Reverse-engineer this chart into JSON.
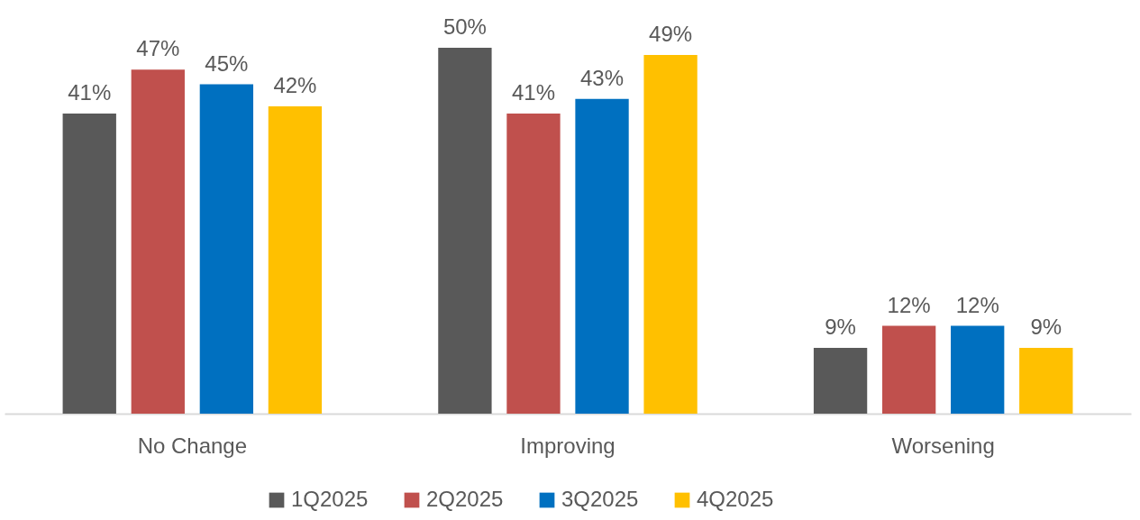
{
  "chart_data": {
    "type": "bar",
    "categories": [
      "No Change",
      "Improving",
      "Worsening"
    ],
    "legend": "bottom",
    "series": [
      {
        "name": "1Q2025",
        "color": "#595959",
        "values": [
          41,
          50,
          9
        ],
        "value_labels": [
          "41%",
          "50%",
          "9%"
        ]
      },
      {
        "name": "2Q2025",
        "color": "#c0504d",
        "values": [
          47,
          41,
          12
        ],
        "value_labels": [
          "47%",
          "41%",
          "12%"
        ]
      },
      {
        "name": "3Q2025",
        "color": "#0070c0",
        "values": [
          45,
          43,
          12
        ],
        "value_labels": [
          "45%",
          "43%",
          "12%"
        ]
      },
      {
        "name": "4Q2025",
        "color": "#ffc000",
        "values": [
          42,
          49,
          9
        ],
        "value_labels": [
          "42%",
          "49%",
          "9%"
        ]
      }
    ]
  }
}
